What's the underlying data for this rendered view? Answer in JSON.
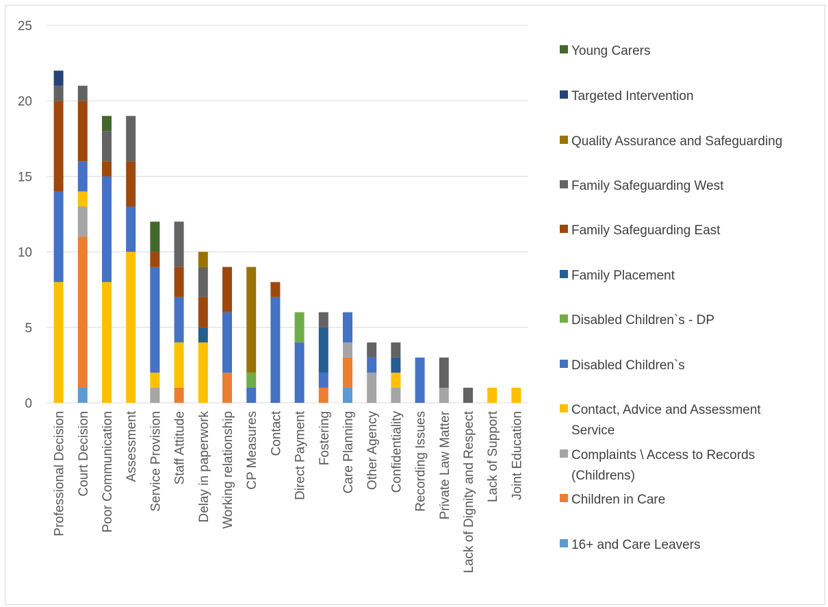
{
  "chart_data": {
    "type": "bar",
    "stacked": true,
    "title": "",
    "xlabel": "",
    "ylabel": "",
    "ylim": [
      0,
      25
    ],
    "yticks": [
      0,
      5,
      10,
      15,
      20,
      25
    ],
    "grid": true,
    "legend_position": "right",
    "categories": [
      "Professional Decision",
      "Court Decision",
      "Poor Communication",
      "Assessment",
      "Service Provision",
      "Staff Attitude",
      "Delay in paperwork",
      "Working relationship",
      "CP Measures",
      "Contact",
      "Direct Payment",
      "Fostering",
      "Care Planning",
      "Other Agency",
      "Confidentiality",
      "Recording Issues",
      "Private Law Matter",
      "Lack of Dignity and Respect",
      "Lack of Support",
      "Joint Education"
    ],
    "series": [
      {
        "name": "16+ and Care Leavers",
        "color": "#5b9bd5",
        "values": [
          0,
          1,
          0,
          0,
          0,
          0,
          0,
          0,
          0,
          0,
          0,
          0,
          1,
          0,
          0,
          0,
          0,
          0,
          0,
          0
        ]
      },
      {
        "name": "Children in Care",
        "color": "#ed7d31",
        "values": [
          0,
          10,
          0,
          0,
          0,
          1,
          0,
          2,
          0,
          0,
          0,
          1,
          2,
          0,
          0,
          0,
          0,
          0,
          0,
          0
        ]
      },
      {
        "name": "Complaints \\ Access to Records (Childrens)",
        "color": "#a5a5a5",
        "values": [
          0,
          2,
          0,
          0,
          1,
          0,
          0,
          0,
          0,
          0,
          0,
          0,
          1,
          2,
          1,
          0,
          1,
          0,
          0,
          0
        ]
      },
      {
        "name": "Contact, Advice and Assessment Service",
        "color": "#ffc000",
        "values": [
          8,
          1,
          8,
          10,
          1,
          3,
          4,
          0,
          0,
          0,
          0,
          0,
          0,
          0,
          1,
          0,
          0,
          0,
          1,
          1
        ]
      },
      {
        "name": "Disabled Children`s",
        "color": "#4472c4",
        "values": [
          6,
          2,
          7,
          3,
          7,
          3,
          0,
          4,
          1,
          7,
          4,
          1,
          2,
          1,
          0,
          3,
          0,
          0,
          0,
          0
        ]
      },
      {
        "name": "Disabled Children`s - DP",
        "color": "#70ad47",
        "values": [
          0,
          0,
          0,
          0,
          0,
          0,
          0,
          0,
          1,
          0,
          2,
          0,
          0,
          0,
          0,
          0,
          0,
          0,
          0,
          0
        ]
      },
      {
        "name": "Family Placement",
        "color": "#255e91",
        "values": [
          0,
          0,
          0,
          0,
          0,
          0,
          1,
          0,
          0,
          0,
          0,
          3,
          0,
          0,
          1,
          0,
          0,
          0,
          0,
          0
        ]
      },
      {
        "name": "Family Safeguarding East",
        "color": "#9e480e",
        "values": [
          6,
          4,
          1,
          3,
          1,
          2,
          2,
          3,
          0,
          1,
          0,
          0,
          0,
          0,
          0,
          0,
          0,
          0,
          0,
          0
        ]
      },
      {
        "name": "Family Safeguarding West",
        "color": "#636363",
        "values": [
          1,
          1,
          2,
          3,
          0,
          3,
          2,
          0,
          0,
          0,
          0,
          1,
          0,
          1,
          1,
          0,
          2,
          1,
          0,
          0
        ]
      },
      {
        "name": "Quality Assurance and Safeguarding",
        "color": "#997300",
        "values": [
          0,
          0,
          0,
          0,
          0,
          0,
          1,
          0,
          7,
          0,
          0,
          0,
          0,
          0,
          0,
          0,
          0,
          0,
          0,
          0
        ]
      },
      {
        "name": "Targeted Intervention",
        "color": "#264478",
        "values": [
          1,
          0,
          0,
          0,
          0,
          0,
          0,
          0,
          0,
          0,
          0,
          0,
          0,
          0,
          0,
          0,
          0,
          0,
          0,
          0
        ]
      },
      {
        "name": "Young Carers",
        "color": "#43682b",
        "values": [
          0,
          0,
          1,
          0,
          2,
          0,
          0,
          0,
          0,
          0,
          0,
          0,
          0,
          0,
          0,
          0,
          0,
          0,
          0,
          0
        ]
      }
    ],
    "legend_order": [
      [
        "Young Carers"
      ],
      [
        "Targeted Intervention"
      ],
      [
        "Quality Assurance and Safeguarding"
      ],
      [
        "Family Safeguarding West"
      ],
      [
        "Family Safeguarding East"
      ],
      [
        "Family Placement"
      ],
      [
        "Disabled Children`s - DP"
      ],
      [
        "Disabled Children`s"
      ],
      [
        "Contact, Advice and Assessment",
        "Service"
      ],
      [
        "Complaints \\ Access to Records",
        "(Childrens)"
      ],
      [
        "Children in Care"
      ],
      [
        "16+ and Care Leavers"
      ]
    ]
  }
}
